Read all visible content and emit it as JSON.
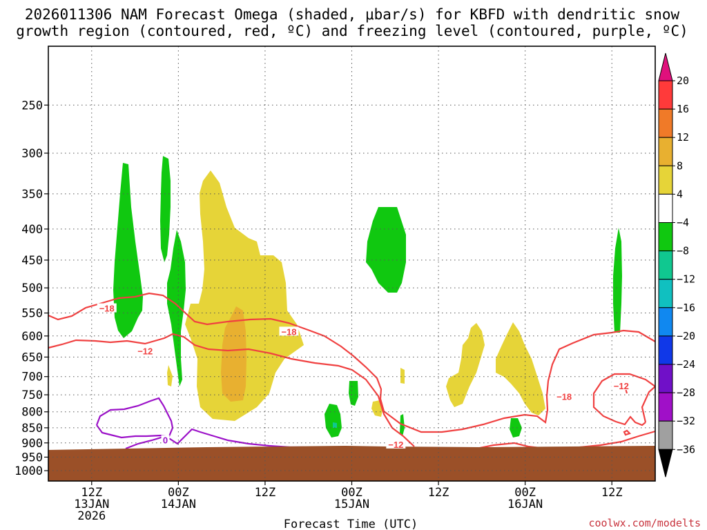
{
  "title_line1": "2026011306 NAM Forecast Omega (shaded, μbar/s) for KBFD with dendritic snow",
  "title_line2": "growth region (contoured, red, ºC) and freezing level (contoured, purple, ºC)",
  "watermark": "coolwx.com/modelts",
  "chart_data": {
    "type": "time-height contour",
    "title": "2026011306 NAM Forecast Omega (shaded, μbar/s) for KBFD with dendritic snow growth region (contoured, red, ºC) and freezing level (contoured, purple, ºC)",
    "xlabel": "Forecast Time (UTC)",
    "ylabel": "",
    "x_ticks": [
      {
        "hour": 6,
        "label": [
          "12Z",
          "13JAN",
          "2026"
        ]
      },
      {
        "hour": 18,
        "label": [
          "00Z",
          "14JAN"
        ]
      },
      {
        "hour": 30,
        "label": [
          "12Z"
        ]
      },
      {
        "hour": 42,
        "label": [
          "00Z",
          "15JAN"
        ]
      },
      {
        "hour": 54,
        "label": [
          "12Z"
        ]
      },
      {
        "hour": 66,
        "label": [
          "00Z",
          "16JAN"
        ]
      },
      {
        "hour": 78,
        "label": [
          "12Z"
        ]
      }
    ],
    "x_range_hours": [
      0,
      84
    ],
    "y_axis": "pressure (hPa), log scale, inverted",
    "y_ticks": [
      250,
      300,
      350,
      400,
      450,
      500,
      550,
      600,
      650,
      700,
      750,
      800,
      850,
      900,
      950,
      1000
    ],
    "y_range_hpa": [
      200,
      1040
    ],
    "grid": "dotted",
    "ground_level_hpa": 940,
    "ground_color": "#9b5028",
    "colorbar": {
      "labels": [
        "20",
        "16",
        "12",
        "8",
        "4",
        "−4",
        "−8",
        "−12",
        "−16",
        "−20",
        "−24",
        "−28",
        "−32",
        "−36"
      ],
      "colors": [
        "#ff3a3a",
        "#f07a28",
        "#e8b030",
        "#e6d438",
        "#ffffff",
        "#10c810",
        "#10c890",
        "#10c0c0",
        "#1088f0",
        "#1038e8",
        "#7010c8",
        "#a010c8",
        "#a0a0a0"
      ],
      "top_arrow_color": "#e0107c",
      "bottom_arrow_color": "#000000"
    },
    "shaded_regions": [
      {
        "omega": "-4 to -8",
        "color": "#10c810",
        "x_hours": [
          9.7,
          12
        ],
        "p_hpa": [
          320,
          600
        ]
      },
      {
        "omega": "-4 to -8",
        "color": "#10c810",
        "x_hours": [
          15.9,
          17.5
        ],
        "p_hpa": [
          310,
          480
        ]
      },
      {
        "omega": "-4 to -8",
        "color": "#10c810",
        "x_hours": [
          16.5,
          18.8
        ],
        "p_hpa": [
          420,
          750
        ]
      },
      {
        "omega": "4 to 8",
        "color": "#e6d438",
        "x_hours": [
          20.9,
          34.6
        ],
        "p_hpa": [
          330,
          850
        ]
      },
      {
        "omega": "8 to 12",
        "color": "#e8b030",
        "x_hours": [
          24.4,
          28.6
        ],
        "p_hpa": [
          540,
          790
        ]
      },
      {
        "omega": "-4 to -8",
        "color": "#10c810",
        "x_hours": [
          44.6,
          48.3
        ],
        "p_hpa": [
          380,
          520
        ]
      },
      {
        "omega": "-4 to -8",
        "color": "#10c810",
        "x_hours": [
          38.6,
          41.3
        ],
        "p_hpa": [
          800,
          890
        ]
      },
      {
        "omega": "4 to 8",
        "color": "#e6d438",
        "x_hours": [
          55,
          60.8
        ],
        "p_hpa": [
          590,
          800
        ]
      },
      {
        "omega": "4 to 8",
        "color": "#e6d438",
        "x_hours": [
          61.8,
          69.2
        ],
        "p_hpa": [
          590,
          830
        ]
      },
      {
        "omega": "-4 to -8",
        "color": "#10c810",
        "x_hours": [
          78.2,
          79.6
        ],
        "p_hpa": [
          410,
          600
        ]
      }
    ],
    "contour_labels": [
      {
        "series": "dendritic growth region",
        "text": "−18",
        "hour": 8.1,
        "hpa": 540
      },
      {
        "series": "dendritic growth region",
        "text": "−18",
        "hour": 33.3,
        "hpa": 590
      },
      {
        "series": "dendritic growth region",
        "text": "−12",
        "hour": 13.4,
        "hpa": 635
      },
      {
        "series": "dendritic growth region",
        "text": "−12",
        "hour": 48.1,
        "hpa": 905
      },
      {
        "series": "dendritic growth region",
        "text": "−18",
        "hour": 71.4,
        "hpa": 755
      },
      {
        "series": "dendritic growth region",
        "text": "−12",
        "hour": 79.3,
        "hpa": 725
      },
      {
        "series": "freezing level",
        "text": "0",
        "hour": 16.2,
        "hpa": 890
      }
    ]
  }
}
